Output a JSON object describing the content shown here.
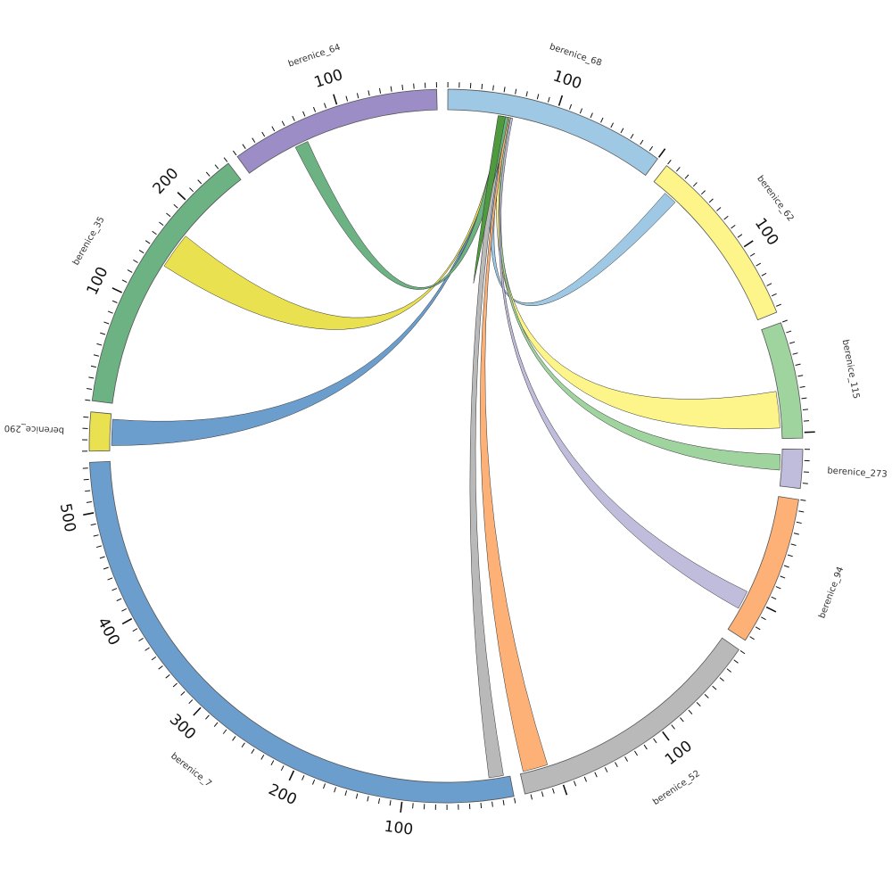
{
  "segments": [
    {
      "name": "berenice_68",
      "length": 200,
      "color": "#9ec8e4",
      "ticks": [
        100
      ]
    },
    {
      "name": "berenice_62",
      "length": 165,
      "color": "#fdf589",
      "ticks": [
        100
      ]
    },
    {
      "name": "berenice_115",
      "length": 105,
      "color": "#9fd49f",
      "ticks": []
    },
    {
      "name": "berenice_273",
      "length": 35,
      "color": "#bfbcdc",
      "ticks": []
    },
    {
      "name": "berenice_94",
      "length": 135,
      "color": "#fdb176",
      "ticks": []
    },
    {
      "name": "berenice_52",
      "length": 235,
      "color": "#b9b9b9",
      "ticks": [
        100
      ]
    },
    {
      "name": "berenice_7",
      "length": 545,
      "color": "#6b9ecd",
      "ticks": [
        100,
        200,
        300,
        400,
        500
      ]
    },
    {
      "name": "berenice_290",
      "length": 35,
      "color": "#eae150",
      "ticks": []
    },
    {
      "name": "berenice_35",
      "length": 250,
      "color": "#6cb282",
      "ticks": [
        100,
        200
      ]
    },
    {
      "name": "berenice_64",
      "length": 190,
      "color": "#9c8dc6",
      "ticks": [
        100
      ]
    }
  ],
  "tick_interval": 10,
  "links": [
    {
      "source": "berenice_68",
      "target": "berenice_62",
      "source_range": [
        50,
        57
      ],
      "target_range": [
        15,
        28
      ],
      "color": "#9ec8e4"
    },
    {
      "source": "berenice_68",
      "target": "berenice_115",
      "source_range": [
        55,
        60
      ],
      "target_range": [
        60,
        95
      ],
      "color": "#fdf589"
    },
    {
      "source": "berenice_68",
      "target": "berenice_273",
      "source_range": [
        58,
        61
      ],
      "target_range": [
        5,
        20
      ],
      "color": "#9fd49f"
    },
    {
      "source": "berenice_68",
      "target": "berenice_94",
      "source_range": [
        60,
        62
      ],
      "target_range": [
        95,
        113
      ],
      "color": "#bfbcdc"
    },
    {
      "source": "berenice_68",
      "target": "berenice_52",
      "source_range": [
        57,
        59
      ],
      "target_range": [
        208,
        232
      ],
      "color": "#fdb176"
    },
    {
      "source": "berenice_68",
      "target": "berenice_7",
      "source_range": [
        50,
        56
      ],
      "target_range": [
        6,
        20
      ],
      "color": "#b9b9b9"
    },
    {
      "source": "berenice_68",
      "target": "berenice_290",
      "source_range": [
        52,
        54
      ],
      "target_range": [
        5,
        30
      ],
      "color": "#6b9ecd"
    },
    {
      "source": "berenice_68",
      "target": "berenice_35",
      "source_range": [
        51,
        54
      ],
      "target_range": [
        140,
        175
      ],
      "color": "#eae150"
    },
    {
      "source": "berenice_68",
      "target": "berenice_64",
      "source_range": [
        50,
        58
      ],
      "target_range": [
        50,
        63
      ],
      "color": "#6cb282"
    },
    {
      "source": "berenice_68",
      "target": "berenice_68",
      "source_range": [
        48,
        55
      ],
      "target_range": [
        48,
        55
      ],
      "color": "#4f9a3e"
    }
  ]
}
